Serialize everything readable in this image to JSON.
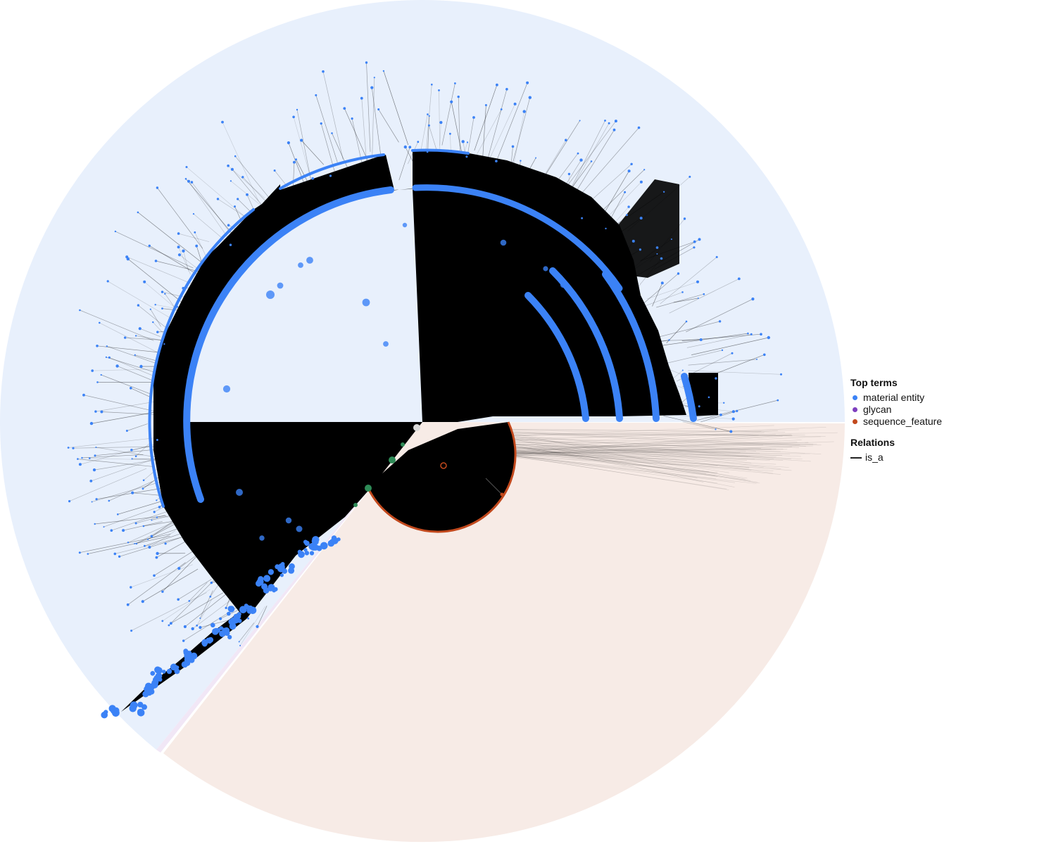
{
  "legend": {
    "top_terms_title": "Top terms",
    "top_terms": [
      {
        "label": "material entity",
        "color": "#3b82f6"
      },
      {
        "label": "glycan",
        "color": "#7e3fbf"
      },
      {
        "label": "sequence_feature",
        "color": "#c2491d"
      }
    ],
    "relations_title": "Relations",
    "relations": [
      {
        "label": "is_a",
        "color": "#222222"
      }
    ]
  },
  "colors": {
    "material_entity_sector": "#e8f0fc",
    "sequence_feature_sector": "#f7ebe6",
    "glycan_sector": "#f1e7f6",
    "node_material_entity": "#3b82f6",
    "node_sequence_feature": "#c2491d",
    "node_other": "#2e8b57",
    "edge": "#000000"
  }
}
